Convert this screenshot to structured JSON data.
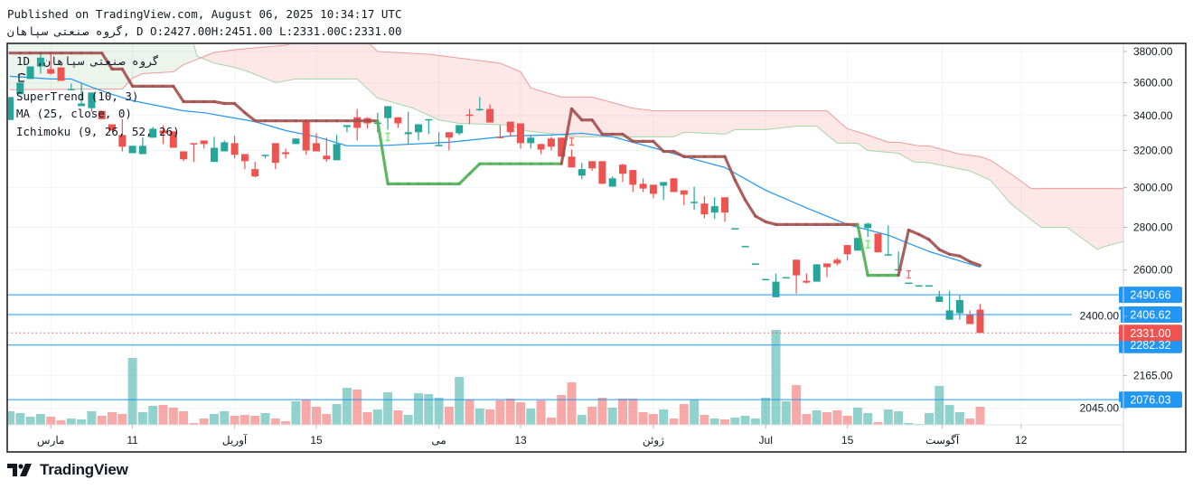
{
  "header": {
    "published": "Published on TradingView.com, August 06, 2025 10:34:17 UTC",
    "symbol": "گروه صنعتی سپاهان",
    "interval_sep": ", D",
    "open": "O:2427.00",
    "high": "H:2451.00",
    "low": "L:2331.00",
    "close": "C:2331.00"
  },
  "legend": {
    "interval": "1D",
    "comma": ",",
    "symbol": "گروه صنعتی سپاهان",
    "indicators": [
      "SuperTrend (10, 3)",
      "MA (25, close, 0)",
      "Ichimoku (9, 26, 52, 26)"
    ]
  },
  "footer": {
    "brand": "TradingView",
    "logo_icon": "tradingview-logo-icon"
  },
  "colors": {
    "up": "#26a69a",
    "down": "#ef5350",
    "supertrend_up": "#4caf50",
    "supertrend_down": "#a24f4c",
    "ma": "#2196f3",
    "span_a": "#a5d6a7",
    "span_b": "#ef9a9a",
    "cloud_up": "rgba(67,160,71,0.10)",
    "cloud_down": "rgba(244,67,54,0.12)",
    "price_line": "#2196f3",
    "last_price": "#ef5350"
  },
  "chart_data": {
    "type": "candlestick",
    "y_scale": "log",
    "grid": true,
    "y_ticks": [
      "3800.00",
      "3600.00",
      "3400.00",
      "3200.00",
      "3000.00",
      "2800.00",
      "2600.00",
      "2400.00",
      "2165.00",
      "2045.00"
    ],
    "x_ticks": [
      {
        "label": "مارس",
        "bar": 5
      },
      {
        "label": "11",
        "bar": 13
      },
      {
        "label": "آوریل",
        "bar": 23
      },
      {
        "label": "15",
        "bar": 31
      },
      {
        "label": "می",
        "bar": 43
      },
      {
        "label": "13",
        "bar": 51
      },
      {
        "label": "ژوئن",
        "bar": 64
      },
      {
        "label": "Jul",
        "bar": 75
      },
      {
        "label": "15",
        "bar": 83
      },
      {
        "label": "آگوست",
        "bar": 92.3
      },
      {
        "label": "12",
        "bar": 100
      }
    ],
    "ohlc": [
      [
        3374,
        3511,
        3374,
        3511
      ],
      [
        3528,
        3600,
        3528,
        3600
      ],
      [
        3623,
        3703,
        3623,
        3703
      ],
      [
        3703,
        3794,
        3657,
        3760
      ],
      [
        3686,
        3794,
        3651,
        3657
      ],
      [
        3697,
        3697,
        3611,
        3611
      ],
      [
        3556,
        3594,
        3556,
        3561
      ],
      [
        3456,
        3600,
        3456,
        3472
      ],
      [
        3444,
        3539,
        3422,
        3539
      ],
      [
        3428,
        3428,
        3379,
        3379
      ],
      [
        3349,
        3349,
        3313,
        3313
      ],
      [
        3287,
        3379,
        3195,
        3221
      ],
      [
        3185,
        3226,
        3185,
        3226
      ],
      [
        3180,
        3272,
        3180,
        3226
      ],
      [
        3272,
        3333,
        3272,
        3323
      ],
      [
        3313,
        3344,
        3236,
        3297
      ],
      [
        3308,
        3308,
        3215,
        3215
      ],
      [
        3195,
        3195,
        3141,
        3151
      ],
      [
        3241,
        3241,
        3137,
        3236
      ],
      [
        3256,
        3256,
        3210,
        3236
      ],
      [
        3137,
        3277,
        3137,
        3215
      ],
      [
        3195,
        3256,
        3195,
        3246
      ],
      [
        3241,
        3282,
        3156,
        3176
      ],
      [
        3180,
        3180,
        3098,
        3141
      ],
      [
        3098,
        3137,
        3054,
        3059
      ],
      [
        3171,
        3176,
        3156,
        3176
      ],
      [
        3241,
        3241,
        3098,
        3132
      ],
      [
        3190,
        3210,
        3156,
        3180
      ],
      [
        3236,
        3267,
        3236,
        3267
      ],
      [
        3364,
        3364,
        3176,
        3200
      ],
      [
        3241,
        3297,
        3195,
        3195
      ],
      [
        3171,
        3272,
        3137,
        3151
      ],
      [
        3146,
        3287,
        3146,
        3236
      ],
      [
        3333,
        3344,
        3303,
        3344
      ],
      [
        3390,
        3439,
        3256,
        3328
      ],
      [
        3385,
        3390,
        3323,
        3354
      ],
      [
        3354,
        3417,
        3303,
        3359
      ],
      [
        3385,
        3456,
        3318,
        3456
      ],
      [
        3390,
        3390,
        3328,
        3354
      ],
      [
        3292,
        3422,
        3236,
        3303
      ],
      [
        3303,
        3349,
        3256,
        3349
      ],
      [
        3374,
        3379,
        3292,
        3379
      ],
      [
        3226,
        3303,
        3226,
        3231
      ],
      [
        3303,
        3303,
        3200,
        3272
      ],
      [
        3297,
        3344,
        3287,
        3344
      ],
      [
        3406,
        3439,
        3349,
        3400
      ],
      [
        3433,
        3511,
        3428,
        3439
      ],
      [
        3439,
        3467,
        3359,
        3359
      ],
      [
        3277,
        3344,
        3267,
        3272
      ],
      [
        3364,
        3364,
        3277,
        3303
      ],
      [
        3354,
        3354,
        3210,
        3241
      ],
      [
        3241,
        3287,
        3210,
        3272
      ],
      [
        3236,
        3236,
        3180,
        3205
      ],
      [
        3267,
        3277,
        3200,
        3221
      ],
      [
        3272,
        3272,
        3166,
        3166
      ],
      [
        3166,
        3205,
        3107,
        3107
      ],
      [
        3063,
        3132,
        3044,
        3098
      ],
      [
        3141,
        3141,
        3088,
        3102
      ],
      [
        3141,
        3141,
        3020,
        3020
      ],
      [
        3005,
        3059,
        3005,
        3049
      ],
      [
        3122,
        3127,
        3029,
        3073
      ],
      [
        3093,
        3093,
        2977,
        3015
      ],
      [
        3020,
        3049,
        2977,
        2995
      ],
      [
        3015,
        3015,
        2945,
        2968
      ],
      [
        3010,
        3029,
        2936,
        3029
      ],
      [
        3049,
        3049,
        2977,
        2977
      ],
      [
        2986,
        2986,
        2909,
        2964
      ],
      [
        2923,
        3005,
        2886,
        2927
      ],
      [
        2918,
        2955,
        2845,
        2864
      ],
      [
        2873,
        2950,
        2841,
        2905
      ],
      [
        2950,
        2950,
        2827,
        2873
      ],
      [
        2794,
        2796,
        2794,
        2796
      ],
      [
        2709,
        2711,
        2709,
        2711
      ],
      [
        2628,
        2630,
        2628,
        2630
      ],
      [
        2558,
        2560,
        2558,
        2560
      ],
      [
        2480,
        2584,
        2480,
        2548
      ],
      [
        2566,
        2568,
        2566,
        2568
      ],
      [
        2647,
        2647,
        2496,
        2576
      ],
      [
        2552,
        2584,
        2540,
        2544
      ],
      [
        2548,
        2626,
        2548,
        2626
      ],
      [
        2630,
        2630,
        2568,
        2613
      ],
      [
        2647,
        2655,
        2621,
        2630
      ],
      [
        2715,
        2715,
        2643,
        2672
      ],
      [
        2689,
        2749,
        2689,
        2749
      ],
      [
        2796,
        2823,
        2753,
        2818
      ],
      [
        2770,
        2770,
        2681,
        2681
      ],
      [
        2670,
        2809,
        2670,
        2672
      ],
      [
        2602,
        2685,
        2602,
        2604
      ],
      [
        2542,
        2544,
        2542,
        2544
      ],
      [
        2530,
        2532,
        2530,
        2532
      ],
      [
        2530,
        2532,
        2530,
        2532
      ],
      [
        2460,
        2508,
        2460,
        2484
      ],
      [
        2385,
        2508,
        2385,
        2424
      ],
      [
        2412,
        2488,
        2385,
        2468
      ],
      [
        2408,
        2424,
        2367,
        2367
      ],
      [
        2427,
        2451,
        2331,
        2331
      ]
    ],
    "volume_relative": [
      15,
      13,
      9,
      12,
      9,
      5,
      7,
      6,
      15,
      10,
      14,
      12,
      74,
      14,
      21,
      22,
      19,
      15,
      2,
      7,
      12,
      15,
      10,
      11,
      10,
      13,
      7,
      4,
      26,
      28,
      20,
      12,
      23,
      41,
      39,
      14,
      17,
      36,
      16,
      11,
      35,
      34,
      30,
      20,
      53,
      28,
      18,
      17,
      27,
      29,
      25,
      18,
      27,
      8,
      33,
      47,
      11,
      20,
      30,
      19,
      29,
      29,
      14,
      12,
      17,
      7,
      23,
      28,
      11,
      7,
      6,
      8,
      10,
      7,
      30,
      105,
      26,
      44,
      12,
      16,
      14,
      16,
      10,
      19,
      13,
      3,
      17,
      15,
      2,
      1,
      13,
      43,
      22,
      14,
      7,
      20
    ],
    "supertrend": {
      "values": [
        3790,
        3790,
        3790,
        3790,
        3790,
        3790,
        3790,
        3790,
        3790,
        3790,
        3686,
        3686,
        3578,
        3578,
        3578,
        3578,
        3578,
        3483,
        3483,
        3483,
        3483,
        3472,
        3472,
        3417,
        3369,
        3369,
        3369,
        3369,
        3369,
        3369,
        3369,
        3369,
        3369,
        3369,
        3369,
        3369,
        3369,
        3020,
        3020,
        3020,
        3020,
        3020,
        3020,
        3020,
        3020,
        3073,
        3127,
        3127,
        3127,
        3127,
        3127,
        3127,
        3127,
        3127,
        3127,
        3440,
        3374,
        3374,
        3292,
        3292,
        3292,
        3251,
        3251,
        3251,
        3195,
        3195,
        3166,
        3166,
        3166,
        3166,
        3166,
        3039,
        2936,
        2855,
        2827,
        2814,
        2814,
        2814,
        2814,
        2814,
        2814,
        2814,
        2814,
        2814,
        2576,
        2576,
        2576,
        2576,
        2787,
        2766,
        2741,
        2694,
        2672,
        2664,
        2638,
        2621
      ],
      "trend": [
        {
          "trend": "down",
          "from": 1,
          "to": 37
        },
        {
          "trend": "up",
          "from": 38,
          "to": 55
        },
        {
          "trend": "down",
          "from": 56,
          "to": 84
        },
        {
          "trend": "up",
          "from": 85,
          "to": 88
        },
        {
          "trend": "down",
          "from": 89,
          "to": 96
        }
      ],
      "signals": [
        {
          "bar": 38,
          "type": "buy"
        },
        {
          "bar": 56,
          "type": "sell"
        },
        {
          "bar": 85,
          "type": "buy"
        },
        {
          "bar": 89,
          "type": "sell"
        }
      ]
    },
    "ma25": [
      [
        1,
        3640
      ],
      [
        5,
        3623
      ],
      [
        7,
        3623
      ],
      [
        9,
        3572
      ],
      [
        11,
        3528
      ],
      [
        13,
        3489
      ],
      [
        18,
        3428
      ],
      [
        20,
        3417
      ],
      [
        25,
        3364
      ],
      [
        28,
        3313
      ],
      [
        31,
        3277
      ],
      [
        34,
        3226
      ],
      [
        37,
        3226
      ],
      [
        44,
        3246
      ],
      [
        50,
        3282
      ],
      [
        54,
        3287
      ],
      [
        57,
        3297
      ],
      [
        60,
        3277
      ],
      [
        64,
        3215
      ],
      [
        67,
        3166
      ],
      [
        71,
        3107
      ],
      [
        75,
        2986
      ],
      [
        79,
        2896
      ],
      [
        83,
        2814
      ],
      [
        87,
        2762
      ],
      [
        91,
        2685
      ],
      [
        96,
        2613
      ]
    ],
    "ichimoku": {
      "span_a": [
        [
          1,
          3850
        ],
        [
          19,
          3850
        ],
        [
          19.3,
          3771
        ],
        [
          21,
          3724
        ],
        [
          23,
          3697
        ],
        [
          24.4,
          3668
        ],
        [
          27,
          3600
        ],
        [
          29,
          3623
        ],
        [
          35,
          3623
        ],
        [
          37,
          3505
        ],
        [
          40.5,
          3444
        ],
        [
          43,
          3374
        ],
        [
          45,
          3354
        ],
        [
          50,
          3344
        ],
        [
          51.3,
          3313
        ],
        [
          56.7,
          3277
        ],
        [
          66,
          3277
        ],
        [
          67,
          3303
        ],
        [
          71,
          3292
        ],
        [
          72,
          3318
        ],
        [
          75,
          3318
        ],
        [
          78,
          3338
        ],
        [
          80,
          3338
        ],
        [
          82,
          3241
        ],
        [
          84,
          3241
        ],
        [
          85,
          3200
        ],
        [
          88,
          3185
        ],
        [
          89.5,
          3137
        ],
        [
          91,
          3132
        ],
        [
          95,
          3088
        ],
        [
          97,
          3039
        ],
        [
          99,
          2918
        ],
        [
          101,
          2836
        ],
        [
          102,
          2800
        ],
        [
          104.5,
          2800
        ],
        [
          107.5,
          2694
        ],
        [
          108,
          2706
        ],
        [
          110,
          2732
        ]
      ],
      "span_b": [
        [
          1,
          3556
        ],
        [
          12,
          3561
        ],
        [
          13,
          3628
        ],
        [
          14,
          3657
        ],
        [
          17,
          3668
        ],
        [
          18,
          3714
        ],
        [
          21,
          3794
        ],
        [
          23,
          3812
        ],
        [
          28,
          3842
        ],
        [
          29,
          3866
        ],
        [
          36,
          3866
        ],
        [
          37,
          3800
        ],
        [
          42,
          3782
        ],
        [
          49,
          3724
        ],
        [
          51,
          3668
        ],
        [
          52,
          3567
        ],
        [
          55,
          3511
        ],
        [
          58,
          3511
        ],
        [
          62,
          3444
        ],
        [
          64,
          3428
        ],
        [
          81,
          3428
        ],
        [
          82,
          3374
        ],
        [
          83,
          3323
        ],
        [
          85,
          3287
        ],
        [
          87,
          3246
        ],
        [
          88,
          3246
        ],
        [
          90,
          3226
        ],
        [
          91,
          3226
        ],
        [
          92,
          3210
        ],
        [
          94,
          3180
        ],
        [
          96,
          3166
        ],
        [
          97,
          3146
        ],
        [
          99,
          3073
        ],
        [
          101,
          2995
        ],
        [
          110,
          2995
        ]
      ]
    },
    "price_lines": [
      {
        "value": 2490.66,
        "label": "2490.66"
      },
      {
        "value": 2406.62,
        "label": "2406.62"
      },
      {
        "value": 2282.32,
        "label": "2282.32"
      },
      {
        "value": 2076.03,
        "label": "2076.03"
      }
    ],
    "last_price": {
      "value": 2331.0,
      "label": "2331.00"
    }
  }
}
